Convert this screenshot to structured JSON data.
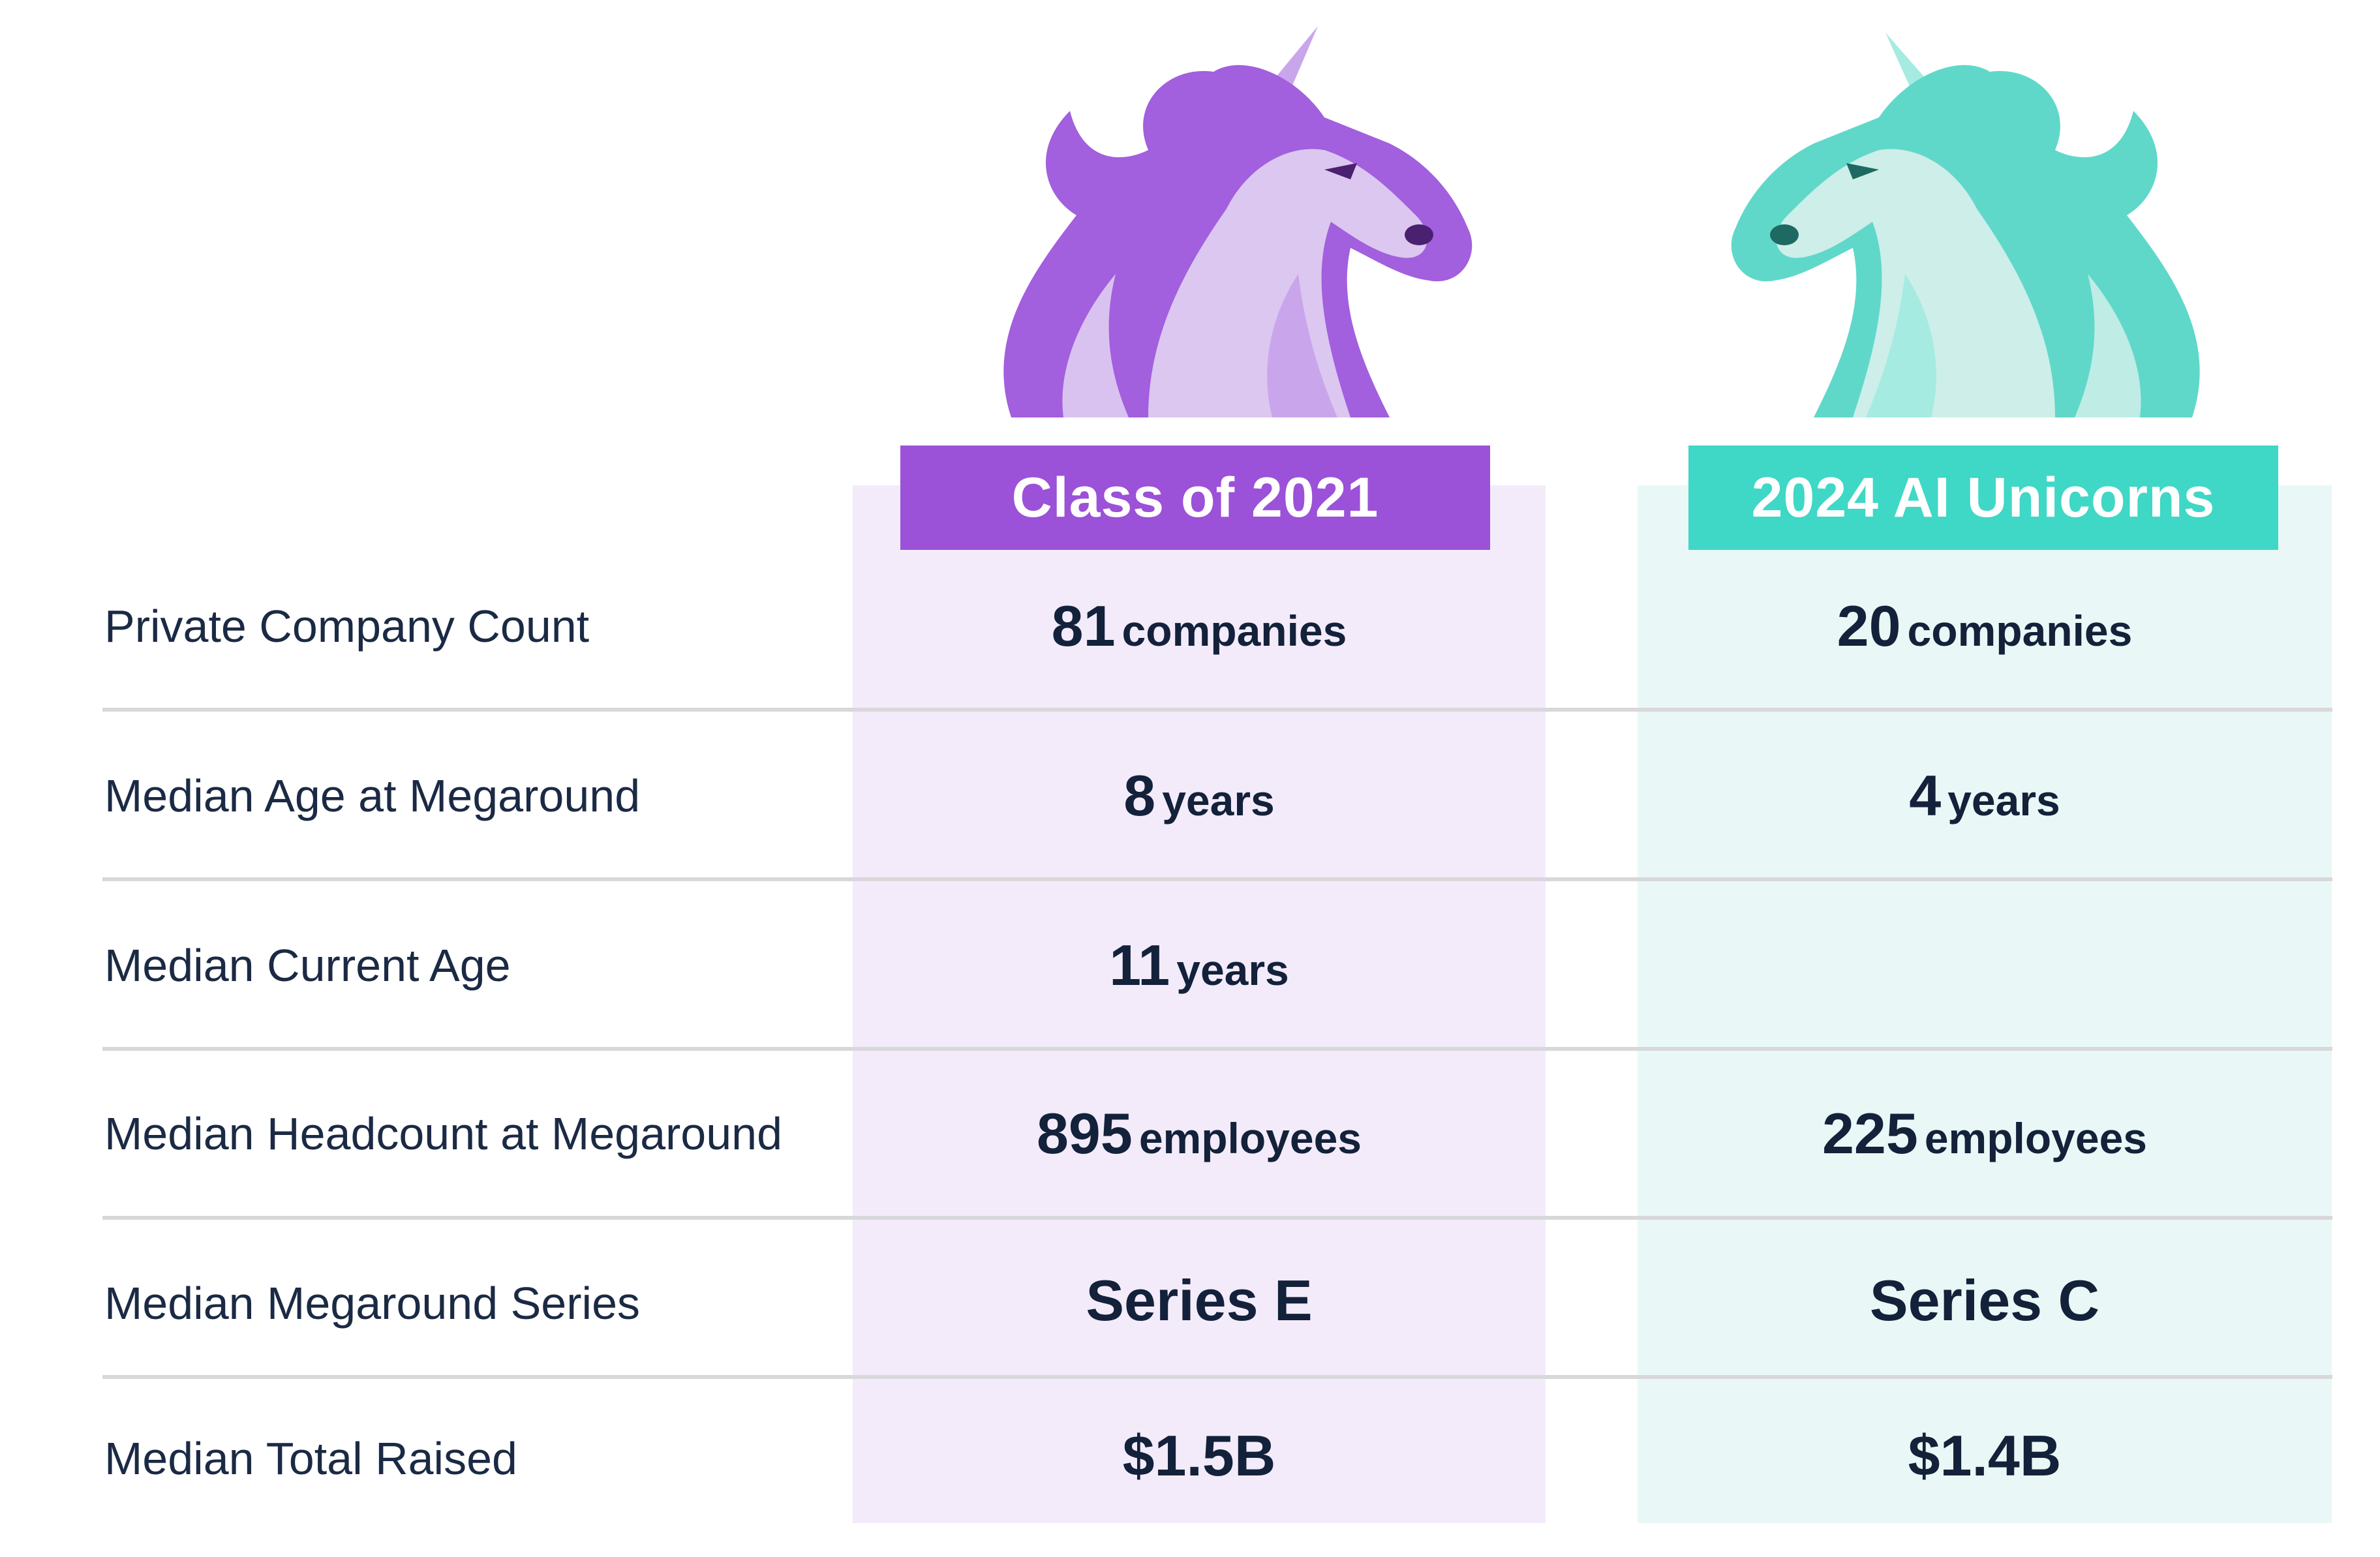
{
  "columns": [
    {
      "name": "Class of 2021",
      "color": "#9b51d8",
      "bg": "#f3ebfa"
    },
    {
      "name": "2024 AI Unicorns",
      "color": "#3fd7c6",
      "bg": "#e9f8f6"
    }
  ],
  "rows": [
    {
      "label": "Private Company Count",
      "c2021": {
        "value": "81",
        "unit": "companies"
      },
      "ai": {
        "value": "20",
        "unit": "companies"
      }
    },
    {
      "label": "Median Age at Megaround",
      "c2021": {
        "value": "8",
        "unit": "years"
      },
      "ai": {
        "value": "4",
        "unit": "years"
      }
    },
    {
      "label": "Median Current Age",
      "c2021": {
        "value": "11",
        "unit": "years"
      },
      "ai": {
        "value": "",
        "unit": ""
      }
    },
    {
      "label": "Median Headcount at Megaround",
      "c2021": {
        "value": "895",
        "unit": "employees"
      },
      "ai": {
        "value": "225",
        "unit": "employees"
      }
    },
    {
      "label": "Median Megaround Series",
      "c2021": {
        "value": "Series E",
        "unit": ""
      },
      "ai": {
        "value": "Series C",
        "unit": ""
      }
    },
    {
      "label": "Median Total Raised",
      "c2021": {
        "value": "$1.5B",
        "unit": ""
      },
      "ai": {
        "value": "$1.4B",
        "unit": ""
      }
    }
  ],
  "chart_data": {
    "type": "table",
    "columns": [
      "Class of 2021",
      "2024 AI Unicorns"
    ],
    "rows": [
      [
        "Private Company Count",
        "81 companies",
        "20 companies"
      ],
      [
        "Median Age at Megaround",
        "8 years",
        "4 years"
      ],
      [
        "Median Current Age",
        "11 years",
        ""
      ],
      [
        "Median Headcount at Megaround",
        "895 employees",
        "225 employees"
      ],
      [
        "Median Megaround Series",
        "Series E",
        "Series C"
      ],
      [
        "Median Total Raised",
        "$1.5B",
        "$1.4B"
      ]
    ]
  },
  "icons": [
    "unicorn-head-purple-icon",
    "unicorn-head-teal-icon"
  ]
}
